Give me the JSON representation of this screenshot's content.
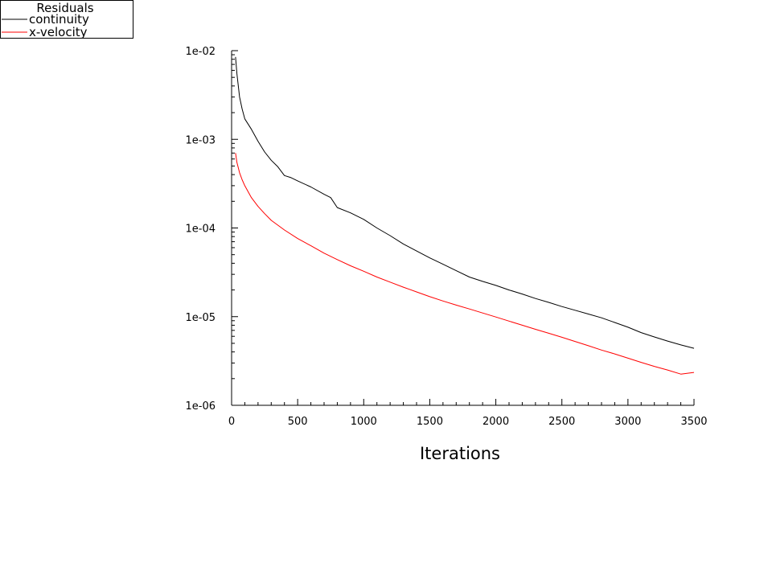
{
  "chart_data": {
    "type": "line",
    "xlabel": "Iterations",
    "ylabel": "",
    "xlim": [
      0,
      3500
    ],
    "ylim": [
      1e-06,
      0.01
    ],
    "y_scale": "log",
    "x_ticks": [
      0,
      500,
      1000,
      1500,
      2000,
      2500,
      3000,
      3500
    ],
    "x_tick_labels": [
      "0",
      "500",
      "1000",
      "1500",
      "2000",
      "2500",
      "3000",
      "3500"
    ],
    "y_ticks": [
      1e-06,
      1e-05,
      0.0001,
      0.001,
      0.01
    ],
    "y_tick_labels": [
      "1e-06",
      "1e-05",
      "1e-04",
      "1e-03",
      "1e-02"
    ],
    "grid": false,
    "legend": {
      "title": "Residuals",
      "placement": "top-left"
    },
    "series": [
      {
        "name": "continuity",
        "color": "#000000",
        "x": [
          30,
          40,
          60,
          80,
          100,
          150,
          200,
          250,
          300,
          350,
          400,
          450,
          500,
          600,
          700,
          750,
          800,
          900,
          1000,
          1100,
          1200,
          1300,
          1400,
          1500,
          1600,
          1700,
          1800,
          1900,
          2000,
          2100,
          2200,
          2300,
          2400,
          2500,
          2600,
          2700,
          2800,
          2900,
          3000,
          3100,
          3200,
          3300,
          3400,
          3500
        ],
        "y": [
          0.0085,
          0.0055,
          0.003,
          0.0022,
          0.0017,
          0.0013,
          0.00095,
          0.00072,
          0.00058,
          0.00049,
          0.00039,
          0.00037,
          0.00034,
          0.00029,
          0.00024,
          0.00022,
          0.00017,
          0.000148,
          0.000125,
          0.0001,
          8.2e-05,
          6.6e-05,
          5.5e-05,
          4.6e-05,
          3.9e-05,
          3.3e-05,
          2.8e-05,
          2.5e-05,
          2.25e-05,
          2e-05,
          1.8e-05,
          1.6e-05,
          1.45e-05,
          1.3e-05,
          1.18e-05,
          1.07e-05,
          9.7e-06,
          8.6e-06,
          7.6e-06,
          6.6e-06,
          5.9e-06,
          5.3e-06,
          4.8e-06,
          4.4e-06
        ]
      },
      {
        "name": "x-velocity",
        "color": "#ff0000",
        "x": [
          30,
          40,
          60,
          80,
          100,
          150,
          200,
          250,
          300,
          400,
          500,
          600,
          700,
          800,
          900,
          1000,
          1100,
          1200,
          1300,
          1400,
          1500,
          1600,
          1700,
          1800,
          1900,
          2000,
          2100,
          2200,
          2300,
          2400,
          2500,
          2600,
          2700,
          2800,
          2900,
          3000,
          3100,
          3200,
          3300,
          3400,
          3500
        ],
        "y": [
          0.0007,
          0.00055,
          0.00042,
          0.00035,
          0.0003,
          0.00022,
          0.000175,
          0.000145,
          0.000122,
          9.5e-05,
          7.6e-05,
          6.3e-05,
          5.2e-05,
          4.4e-05,
          3.75e-05,
          3.25e-05,
          2.8e-05,
          2.45e-05,
          2.15e-05,
          1.9e-05,
          1.68e-05,
          1.5e-05,
          1.35e-05,
          1.22e-05,
          1.1e-05,
          9.9e-06,
          8.9e-06,
          8e-06,
          7.2e-06,
          6.5e-06,
          5.85e-06,
          5.25e-06,
          4.7e-06,
          4.2e-06,
          3.8e-06,
          3.4e-06,
          3.05e-06,
          2.75e-06,
          2.5e-06,
          2.25e-06,
          2.35e-06
        ]
      }
    ]
  }
}
